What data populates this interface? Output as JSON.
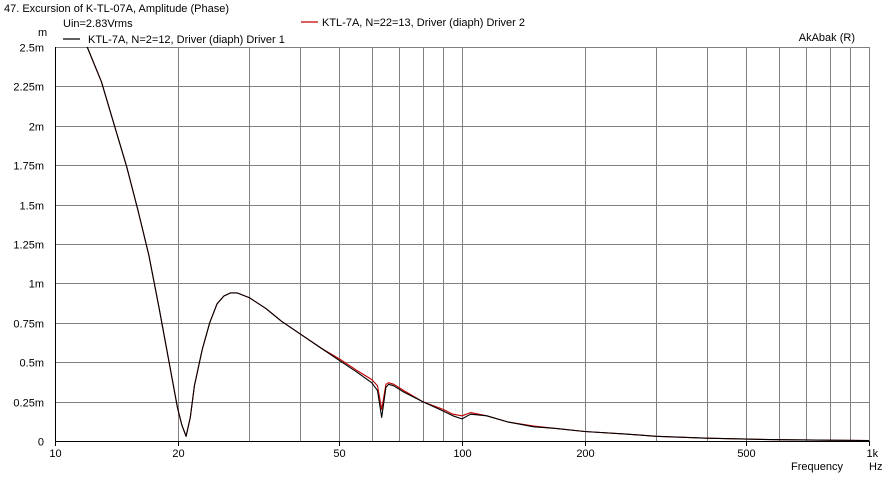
{
  "header": {
    "title": "47. Excursion of K-TL-07A, Amplitude (Phase)",
    "subtitle": "Uin=2.83Vrms",
    "watermark": "AkAbak (R)"
  },
  "chart_data": {
    "type": "line",
    "title": "47. Excursion of K-TL-07A, Amplitude (Phase)",
    "xlabel": "Frequency",
    "xunit": "Hz",
    "yunit": "m",
    "xscale": "log",
    "xlim": [
      10,
      1000
    ],
    "ylim": [
      0,
      0.0025
    ],
    "grid": true,
    "legend_position": "top",
    "x_ticks": [
      {
        "value": 10,
        "label": "10"
      },
      {
        "value": 20,
        "label": "20"
      },
      {
        "value": 50,
        "label": "50"
      },
      {
        "value": 100,
        "label": "100"
      },
      {
        "value": 200,
        "label": "200"
      },
      {
        "value": 500,
        "label": "500"
      },
      {
        "value": 1000,
        "label": "1k"
      }
    ],
    "y_ticks": [
      {
        "value": 0,
        "label": "0"
      },
      {
        "value": 0.00025,
        "label": "0.25m"
      },
      {
        "value": 0.0005,
        "label": "0.5m"
      },
      {
        "value": 0.00075,
        "label": "0.75m"
      },
      {
        "value": 0.001,
        "label": "1m"
      },
      {
        "value": 0.00125,
        "label": "1.25m"
      },
      {
        "value": 0.0015,
        "label": "1.5m"
      },
      {
        "value": 0.00175,
        "label": "1.75m"
      },
      {
        "value": 0.002,
        "label": "2m"
      },
      {
        "value": 0.00225,
        "label": "2.25m"
      },
      {
        "value": 0.0025,
        "label": "2.5m"
      }
    ],
    "series": [
      {
        "name": "KTL-7A, N=2=12, Driver (diaph) Driver 1",
        "color": "#000000",
        "x": [
          12.0,
          13.0,
          14.0,
          15.0,
          16.0,
          17.0,
          18.0,
          19.0,
          20.0,
          20.5,
          21.0,
          21.5,
          22.0,
          23.0,
          24.0,
          25.0,
          26.0,
          27.0,
          28.0,
          30.0,
          33.0,
          36.0,
          40.0,
          45.0,
          50.0,
          55.0,
          60.0,
          62.0,
          63.5,
          65.0,
          66.0,
          68.0,
          72.0,
          80.0,
          90.0,
          95.0,
          100.0,
          105.0,
          115.0,
          130.0,
          150.0,
          170.0,
          200.0,
          250.0,
          300.0,
          400.0,
          500.0,
          600.0,
          800.0,
          1000.0
        ],
        "y": [
          0.0025,
          0.00228,
          0.002,
          0.00174,
          0.00146,
          0.00118,
          0.00085,
          0.00052,
          0.00021,
          0.0001,
          3e-05,
          0.00015,
          0.00035,
          0.00058,
          0.00075,
          0.00087,
          0.00092,
          0.00094,
          0.00094,
          0.00091,
          0.00084,
          0.00076,
          0.00068,
          0.00059,
          0.00051,
          0.00044,
          0.00037,
          0.00032,
          0.00015,
          0.00034,
          0.00036,
          0.00035,
          0.00031,
          0.00025,
          0.00019,
          0.00016,
          0.00014,
          0.00017,
          0.00016,
          0.00012,
          9e-05,
          8e-05,
          6e-05,
          4.5e-05,
          3e-05,
          1.8e-05,
          1.2e-05,
          8e-06,
          5e-06,
          3e-06
        ]
      },
      {
        "name": "KTL-7A, N=22=13, Driver (diaph) Driver 2",
        "color": "#c00000",
        "x": [
          12.0,
          13.0,
          14.0,
          15.0,
          16.0,
          17.0,
          18.0,
          19.0,
          20.0,
          20.5,
          21.0,
          21.5,
          22.0,
          23.0,
          24.0,
          25.0,
          26.0,
          27.0,
          28.0,
          30.0,
          33.0,
          36.0,
          40.0,
          45.0,
          50.0,
          55.0,
          60.0,
          62.0,
          63.5,
          65.0,
          66.0,
          68.0,
          72.0,
          80.0,
          90.0,
          95.0,
          100.0,
          105.0,
          115.0,
          130.0,
          150.0,
          170.0,
          200.0,
          250.0,
          300.0,
          400.0,
          500.0,
          600.0,
          800.0,
          1000.0
        ],
        "y": [
          0.0025,
          0.00228,
          0.002,
          0.00174,
          0.00146,
          0.00118,
          0.00085,
          0.00052,
          0.00021,
          0.0001,
          3e-05,
          0.00015,
          0.00035,
          0.00058,
          0.00075,
          0.00087,
          0.00092,
          0.00094,
          0.00094,
          0.00091,
          0.00084,
          0.00076,
          0.00068,
          0.00059,
          0.00052,
          0.00045,
          0.00039,
          0.00035,
          0.0002,
          0.00036,
          0.00037,
          0.00036,
          0.00032,
          0.00025,
          0.0002,
          0.00017,
          0.00016,
          0.00018,
          0.00016,
          0.00012,
          9.5e-05,
          8e-05,
          6e-05,
          4.5e-05,
          3e-05,
          1.8e-05,
          1.2e-05,
          8e-06,
          5e-06,
          3e-06
        ]
      }
    ]
  }
}
